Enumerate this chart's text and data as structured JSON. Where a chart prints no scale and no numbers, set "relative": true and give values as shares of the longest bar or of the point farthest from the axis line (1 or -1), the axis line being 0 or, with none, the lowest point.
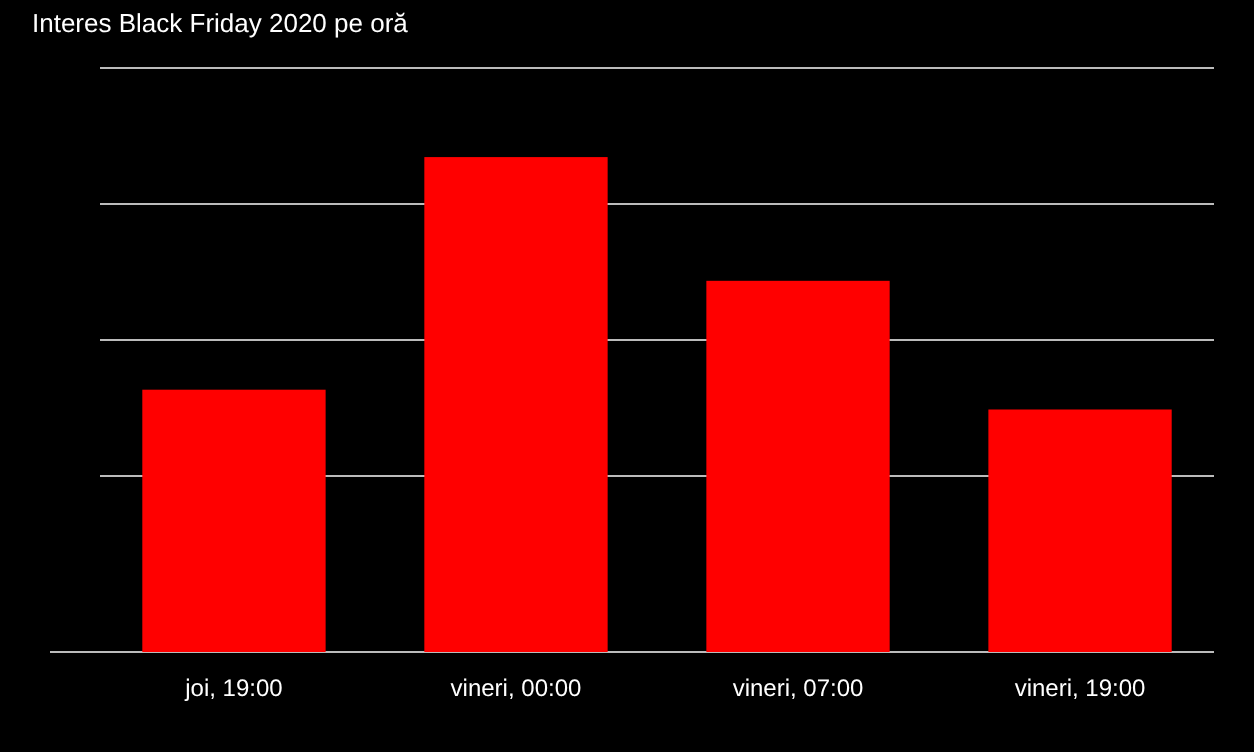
{
  "chart_data": {
    "type": "bar",
    "title": "Interes Black Friday 2020 pe oră",
    "categories": [
      "joi, 19:00",
      "vineri, 00:00",
      "vineri, 07:00",
      "vineri, 19:00"
    ],
    "values": [
      0.53,
      1,
      0.75,
      0.49
    ],
    "color": "#ff0000",
    "relative": true,
    "grid": "y"
  }
}
